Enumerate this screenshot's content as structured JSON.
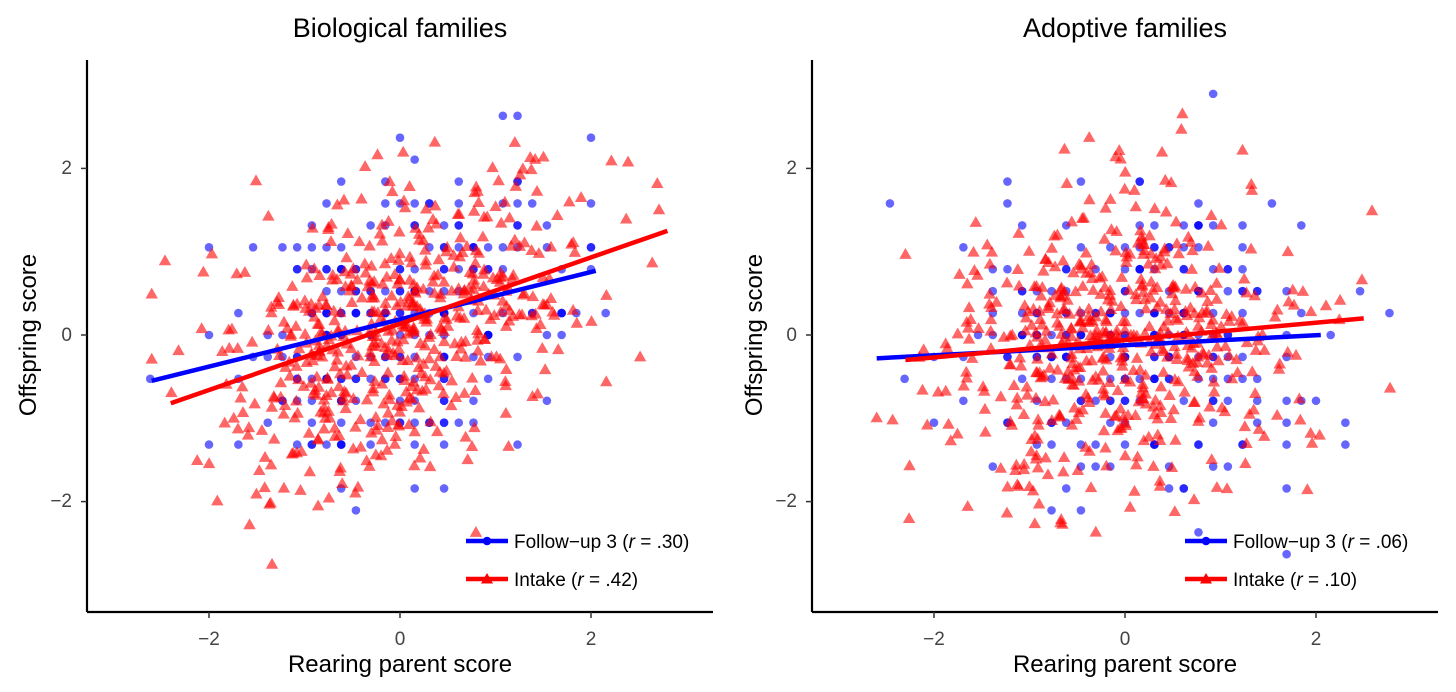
{
  "chart_data": [
    {
      "type": "scatter",
      "title": "Biological families",
      "xlabel": "Rearing parent score",
      "ylabel": "Offspring score",
      "xlim": [
        -3.3,
        3.4
      ],
      "ylim": [
        -3.3,
        3.3
      ],
      "xticks": [
        -2,
        0,
        2
      ],
      "yticks": [
        -2,
        0,
        2
      ],
      "xtick_labels": [
        "−2",
        "0",
        "2"
      ],
      "ytick_labels": [
        "−2",
        "0",
        "2"
      ],
      "grid": false,
      "legend_position": "bottom-right",
      "series": [
        {
          "name": "Follow−up 3",
          "r_label": "r",
          "r_value": " = .30)",
          "label_prefix": " (",
          "color": "#0000ff",
          "marker": "circle",
          "n_points": 230,
          "fit_line": {
            "x": [
              -2.6,
              2.05
            ],
            "y": [
              -0.55,
              0.77
            ]
          }
        },
        {
          "name": "Intake",
          "r_label": "r",
          "r_value": " = .42)",
          "label_prefix": " (",
          "color": "#ff0000",
          "marker": "triangle",
          "n_points": 560,
          "fit_line": {
            "x": [
              -2.4,
              2.8
            ],
            "y": [
              -0.82,
              1.25
            ]
          }
        }
      ]
    },
    {
      "type": "scatter",
      "title": "Adoptive families",
      "xlabel": "Rearing parent score",
      "ylabel": "Offspring score",
      "xlim": [
        -3.3,
        3.4
      ],
      "ylim": [
        -3.3,
        3.3
      ],
      "xticks": [
        -2,
        0,
        2
      ],
      "yticks": [
        -2,
        0,
        2
      ],
      "xtick_labels": [
        "−2",
        "0",
        "2"
      ],
      "ytick_labels": [
        "−2",
        "0",
        "2"
      ],
      "grid": false,
      "legend_position": "bottom-right",
      "series": [
        {
          "name": "Follow−up 3",
          "r_label": "r",
          "r_value": " = .06)",
          "label_prefix": " (",
          "color": "#0000ff",
          "marker": "circle",
          "n_points": 230,
          "fit_line": {
            "x": [
              -2.6,
              2.05
            ],
            "y": [
              -0.28,
              0.0
            ]
          }
        },
        {
          "name": "Intake",
          "r_label": "r",
          "r_value": " = .10)",
          "label_prefix": " (",
          "color": "#ff0000",
          "marker": "triangle",
          "n_points": 560,
          "fit_line": {
            "x": [
              -2.3,
              2.5
            ],
            "y": [
              -0.3,
              0.2
            ]
          }
        }
      ]
    }
  ]
}
